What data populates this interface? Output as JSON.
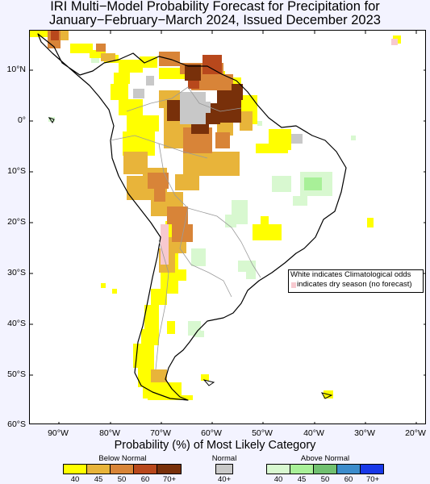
{
  "title": {
    "line1": "IRI Multi−Model Probability Forecast for Precipitation for",
    "line2": "January−February−March 2024, Issued December 2023"
  },
  "map": {
    "lat_labels": [
      "10°N",
      "0°",
      "10°S",
      "20°S",
      "30°S",
      "40°S",
      "50°S",
      "60°S"
    ],
    "lon_labels": [
      "90°W",
      "80°W",
      "70°W",
      "60°W",
      "50°W",
      "40°W",
      "30°W",
      "20°W"
    ],
    "note_line1": "White indicates Climatological odds",
    "note_line2": "indicates dry season (no forecast)"
  },
  "legend": {
    "title": "Probability (%) of Most Likely Category",
    "below": {
      "label": "Below Normal",
      "colors": [
        "#ffff00",
        "#e8b43a",
        "#d88438",
        "#b8481c",
        "#78300a"
      ],
      "ticks": [
        "40",
        "45",
        "50",
        "60",
        "70+"
      ]
    },
    "normal": {
      "label": "Normal",
      "color": "#c8c8c8",
      "tick": "40+"
    },
    "above": {
      "label": "Above Normal",
      "colors": [
        "#d8f8d0",
        "#a8f098",
        "#70c070",
        "#3c8ccc",
        "#1838e8"
      ],
      "ticks": [
        "40",
        "45",
        "50",
        "60",
        "70+"
      ]
    },
    "dry_season_color": "#f7c9cf"
  }
}
